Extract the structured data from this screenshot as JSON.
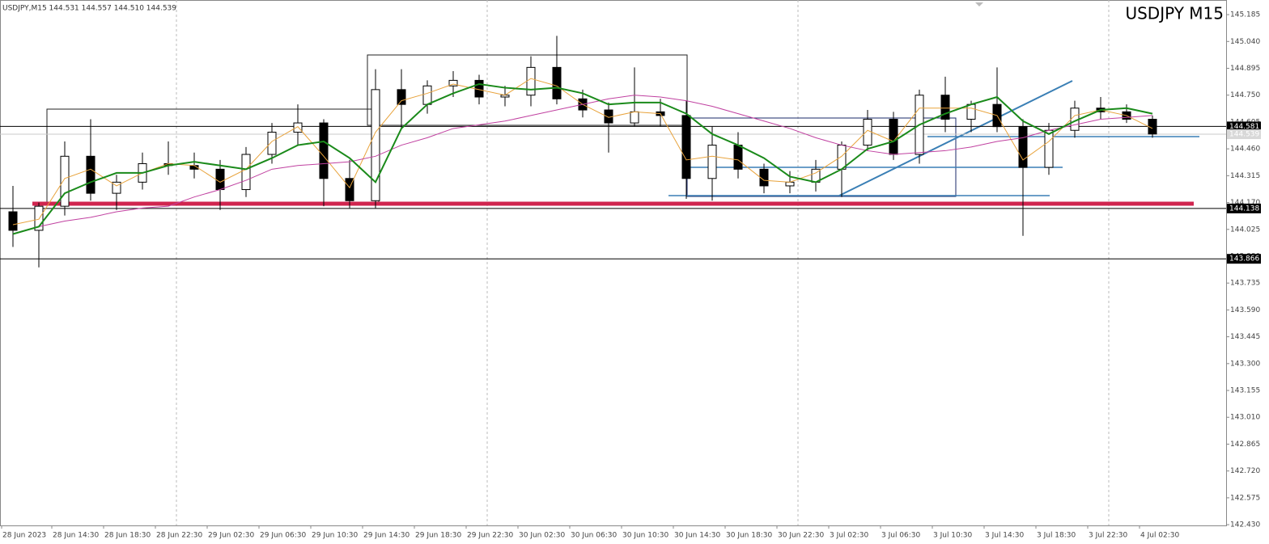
{
  "chart_data": {
    "type": "candlestick",
    "title": "USDJPY M15",
    "info": "USDJPY,M15  144.531 144.557 144.510 144.539",
    "categories": [
      "28 Jun 2023",
      null,
      "28 Jun 14:30",
      null,
      "28 Jun 18:30",
      null,
      "28 Jun 22:30",
      null,
      "29 Jun 02:30",
      null,
      "29 Jun 06:30",
      null,
      "29 Jun 10:30",
      null,
      "29 Jun 14:30",
      null,
      "29 Jun 18:30",
      null,
      "29 Jun 22:30",
      null,
      "30 Jun 02:30",
      null,
      "30 Jun 06:30",
      null,
      "30 Jun 10:30",
      null,
      "30 Jun 14:30",
      null,
      "30 Jun 18:30",
      null,
      "30 Jun 22:30",
      null,
      "3 Jul 02:30",
      null,
      "3 Jul 06:30",
      null,
      "3 Jul 10:30",
      null,
      "3 Jul 14:30",
      null,
      "3 Jul 18:30",
      null,
      "3 Jul 22:30",
      null,
      "4 Jul 02:30"
    ],
    "open": [
      144.12,
      144.02,
      144.15,
      144.42,
      144.22,
      144.28,
      144.38,
      144.37,
      144.35,
      144.24,
      144.43,
      144.55,
      144.6,
      144.3,
      144.18,
      144.78,
      144.7,
      144.8,
      144.83,
      144.74,
      144.75,
      144.9,
      144.73,
      144.67,
      144.6,
      144.66,
      144.64,
      144.3,
      144.48,
      144.35,
      144.26,
      144.28,
      144.35,
      144.48,
      144.62,
      144.43,
      144.75,
      144.62,
      144.7,
      144.58,
      144.36,
      144.56,
      144.68,
      144.66,
      144.62
    ],
    "high": [
      144.26,
      144.17,
      144.5,
      144.62,
      144.32,
      144.44,
      144.5,
      144.44,
      144.4,
      144.47,
      144.6,
      144.7,
      144.62,
      144.4,
      144.89,
      144.89,
      144.83,
      144.88,
      144.86,
      144.8,
      144.96,
      145.07,
      144.78,
      144.71,
      144.9,
      144.73,
      144.72,
      144.58,
      144.55,
      144.38,
      144.34,
      144.4,
      144.5,
      144.67,
      144.66,
      144.78,
      144.85,
      144.72,
      144.9,
      144.62,
      144.6,
      144.72,
      144.74,
      144.7,
      144.64
    ],
    "low": [
      143.93,
      143.82,
      144.1,
      144.18,
      144.13,
      144.24,
      144.32,
      144.3,
      144.13,
      144.2,
      144.38,
      144.48,
      144.15,
      144.14,
      144.14,
      144.57,
      144.65,
      144.74,
      144.7,
      144.69,
      144.69,
      144.7,
      144.63,
      144.44,
      144.58,
      144.58,
      144.19,
      144.18,
      144.3,
      144.22,
      144.22,
      144.23,
      144.2,
      144.45,
      144.4,
      144.38,
      144.55,
      144.55,
      144.55,
      143.99,
      144.32,
      144.52,
      144.62,
      144.6,
      144.52
    ],
    "close": [
      144.02,
      144.15,
      144.42,
      144.22,
      144.28,
      144.38,
      144.37,
      144.35,
      144.24,
      144.43,
      144.55,
      144.6,
      144.3,
      144.18,
      144.78,
      144.7,
      144.8,
      144.83,
      144.74,
      144.75,
      144.9,
      144.73,
      144.67,
      144.6,
      144.66,
      144.64,
      144.3,
      144.48,
      144.35,
      144.26,
      144.28,
      144.35,
      144.48,
      144.62,
      144.43,
      144.75,
      144.62,
      144.7,
      144.58,
      144.36,
      144.56,
      144.68,
      144.66,
      144.62,
      144.54
    ],
    "overlays": [
      {
        "color": "#e8a33c",
        "values": [
          144.05,
          144.08,
          144.3,
          144.35,
          144.26,
          144.33,
          144.38,
          144.37,
          144.28,
          144.35,
          144.5,
          144.58,
          144.42,
          144.25,
          144.55,
          144.72,
          144.76,
          144.81,
          144.78,
          144.75,
          144.84,
          144.8,
          144.7,
          144.63,
          144.66,
          144.65,
          144.4,
          144.42,
          144.4,
          144.29,
          144.28,
          144.33,
          144.42,
          144.56,
          144.5,
          144.68,
          144.68,
          144.68,
          144.64,
          144.4,
          144.5,
          144.64,
          144.67,
          144.64,
          144.57
        ]
      },
      {
        "color": "#c040a0",
        "values": [
          144.0,
          144.04,
          144.07,
          144.09,
          144.12,
          144.14,
          144.15,
          144.2,
          144.24,
          144.29,
          144.35,
          144.37,
          144.38,
          144.39,
          144.42,
          144.48,
          144.52,
          144.57,
          144.59,
          144.61,
          144.64,
          144.67,
          144.7,
          144.73,
          144.75,
          144.74,
          144.72,
          144.69,
          144.65,
          144.61,
          144.57,
          144.52,
          144.48,
          144.45,
          144.43,
          144.44,
          144.45,
          144.47,
          144.5,
          144.52,
          144.56,
          144.59,
          144.62,
          144.63,
          144.64
        ]
      },
      {
        "color": "#1a8a1a",
        "values": [
          144.0,
          144.04,
          144.22,
          144.28,
          144.33,
          144.33,
          144.37,
          144.39,
          144.37,
          144.35,
          144.41,
          144.48,
          144.5,
          144.41,
          144.28,
          144.57,
          144.7,
          144.76,
          144.81,
          144.79,
          144.78,
          144.79,
          144.76,
          144.7,
          144.71,
          144.71,
          144.65,
          144.54,
          144.48,
          144.41,
          144.31,
          144.28,
          144.35,
          144.46,
          144.5,
          144.59,
          144.65,
          144.7,
          144.74,
          144.61,
          144.54,
          144.61,
          144.67,
          144.68,
          144.65
        ]
      }
    ],
    "ylim": [
      142.426,
      145.264
    ],
    "yticks": [
      145.185,
      {
        "value": 145.04,
        "label": "145.040"
      },
      144.895,
      {
        "value": 144.75,
        "label": "144.750"
      },
      144.605,
      {
        "value": 144.46,
        "label": "144.460"
      },
      144.315,
      {
        "value": 144.17,
        "label": "144.170"
      },
      144.025,
      {
        "value": 143.88,
        "label": "143.880"
      },
      143.735,
      {
        "value": 143.59,
        "label": "143.590"
      },
      143.445,
      {
        "value": 143.3,
        "label": "143.300"
      },
      143.155,
      {
        "value": 143.01,
        "label": "143.010"
      },
      142.865,
      {
        "value": 142.72,
        "label": "142.720"
      },
      142.575,
      {
        "value": 142.43,
        "label": "142.430"
      }
    ],
    "price_lines": [
      144.581,
      144.138,
      143.866
    ],
    "current_price": 144.539
  }
}
